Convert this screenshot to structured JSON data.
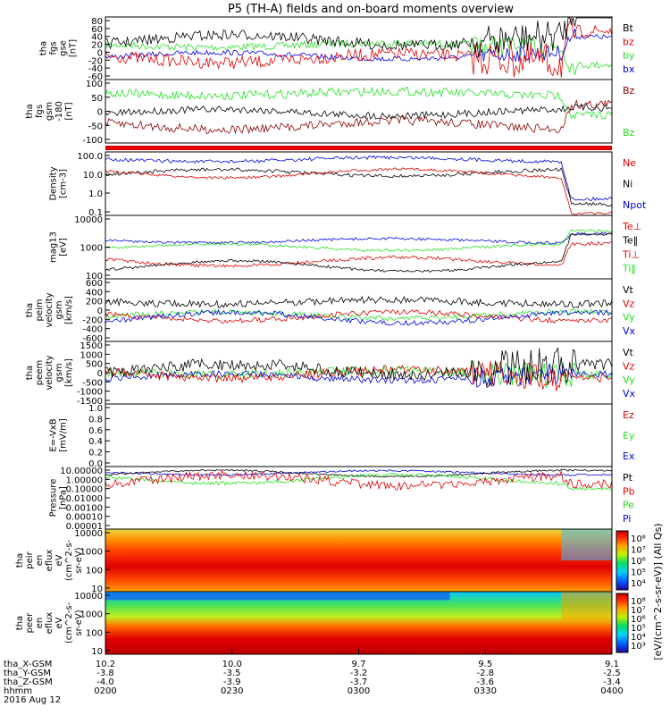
{
  "title": "P5 (TH-A) fields and on-board moments overview",
  "colors": {
    "black": "#000000",
    "red": "#e00000",
    "green": "#22e022",
    "blue": "#0000e0",
    "darkred": "#8b0000"
  },
  "panels": [
    {
      "ylabel": [
        "tha",
        "fgs",
        "gse",
        "[nT]"
      ],
      "ticks": [
        "80",
        "60",
        "40",
        "20",
        "0",
        "-20",
        "-40",
        "-60"
      ],
      "ylim": [
        -60,
        85
      ],
      "legend": [
        {
          "label": "Bt",
          "color": "black"
        },
        {
          "label": "bz",
          "color": "red"
        },
        {
          "label": "by",
          "color": "green"
        },
        {
          "label": "bx",
          "color": "blue"
        }
      ]
    },
    {
      "ylabel": [
        "tha",
        "fgs",
        "gsm",
        "-180",
        "[nT]"
      ],
      "ticks": [
        "100",
        "50",
        "0",
        "-50",
        "-100"
      ],
      "ylim": [
        -130,
        100
      ],
      "legend": [
        {
          "label": "Bz",
          "color": "darkred"
        },
        {
          "label": "Bz",
          "color": "green"
        }
      ]
    },
    {
      "ylabel": [
        "Density",
        "[cm-3]"
      ],
      "ticks": [
        "100.0",
        "10.0",
        "1.0",
        "0.1"
      ],
      "ylim": [
        0.1,
        200
      ],
      "log": true,
      "legend": [
        {
          "label": "Ne",
          "color": "red"
        },
        {
          "label": "Ni",
          "color": "black"
        },
        {
          "label": "Npot",
          "color": "blue"
        }
      ]
    },
    {
      "ylabel": [
        "mag13",
        "[eV]"
      ],
      "ticks": [
        "10000",
        "1000",
        "100"
      ],
      "ylim": [
        50,
        10000
      ],
      "log": true,
      "legend": [
        {
          "label": "Te⊥",
          "color": "red"
        },
        {
          "label": "Te‖",
          "color": "black"
        },
        {
          "label": "Ti⊥",
          "color": "red"
        },
        {
          "label": "Ti‖",
          "color": "green"
        }
      ]
    },
    {
      "ylabel": [
        "tha",
        "peim",
        "velocity",
        "gsm",
        "[km/s]"
      ],
      "ticks": [
        "600",
        "400",
        "200",
        "0",
        "-200",
        "-400",
        "-600"
      ],
      "ylim": [
        -600,
        600
      ],
      "legend": [
        {
          "label": "Vt",
          "color": "black"
        },
        {
          "label": "Vz",
          "color": "red"
        },
        {
          "label": "Vy",
          "color": "green"
        },
        {
          "label": "Vx",
          "color": "blue"
        }
      ]
    },
    {
      "ylabel": [
        "tha",
        "peem",
        "velocity",
        "gsm",
        "[km/s]"
      ],
      "ticks": [
        "1500",
        "1000",
        "500",
        "0",
        "-500",
        "-1000",
        "-1500"
      ],
      "ylim": [
        -1500,
        1500
      ],
      "legend": [
        {
          "label": "Vt",
          "color": "black"
        },
        {
          "label": "Vz",
          "color": "red"
        },
        {
          "label": "Vy",
          "color": "green"
        },
        {
          "label": "Vx",
          "color": "blue"
        }
      ]
    },
    {
      "ylabel": [
        "E=-VxB",
        "[mV/m]"
      ],
      "ticks": [
        "1.0",
        "0.8",
        "0.6",
        "0.4",
        "0.2",
        "0.0"
      ],
      "ylim": [
        0,
        1
      ],
      "legend": [
        {
          "label": "Ez",
          "color": "red"
        },
        {
          "label": "Ey",
          "color": "green"
        },
        {
          "label": "Ex",
          "color": "blue"
        }
      ]
    },
    {
      "ylabel": [
        "Pressure",
        "[nPa]"
      ],
      "ticks": [
        "10.00000",
        "1.00000",
        "0.10000",
        "0.01000",
        "0.00100",
        "0.00010",
        "0.00001"
      ],
      "ylim": [
        1e-05,
        10
      ],
      "log": true,
      "legend": [
        {
          "label": "Pt",
          "color": "black"
        },
        {
          "label": "Pb",
          "color": "red"
        },
        {
          "label": "Pe",
          "color": "green"
        },
        {
          "label": "Pi",
          "color": "blue"
        }
      ]
    },
    {
      "ylabel": [
        "tha",
        "peir",
        "en",
        "eflux",
        "eV",
        "(cm^2-s-",
        "sr-eV)"
      ],
      "ticks": [
        "10000",
        "1000",
        "100",
        "10"
      ],
      "spectrogram": true
    },
    {
      "ylabel": [
        "tha",
        "peer",
        "en",
        "eflux",
        "eV",
        "(cm^2-s-",
        "sr-eV)"
      ],
      "ticks": [
        "10000",
        "1000",
        "100",
        "10"
      ],
      "spectrogram": true
    }
  ],
  "colorbar_ticks": [
    "10⁸",
    "10⁷",
    "10⁶",
    "10⁵",
    "10⁴"
  ],
  "colorbar_ticks_2": [
    "10⁸",
    "10⁷",
    "10⁶",
    "10⁵",
    "10⁴",
    "10³"
  ],
  "colorbar_label": "[eV/(cm^2-s-sr-eV)] (All Qs)",
  "xaxis": {
    "rows": [
      {
        "label": "tha_X-GSM",
        "values": [
          "10.2",
          "10.0",
          "9.7",
          "9.5",
          "9.1"
        ]
      },
      {
        "label": "tha_Y-GSM",
        "values": [
          "-3.8",
          "-3.5",
          "-3.2",
          "-2.8",
          "-2.5"
        ]
      },
      {
        "label": "tha_Z-GSM",
        "values": [
          "-4.0",
          "-3.9",
          "-3.7",
          "-3.6",
          "-3.4"
        ]
      },
      {
        "label": "hhmm",
        "values": [
          "0200",
          "0230",
          "0300",
          "0330",
          "0400"
        ]
      }
    ],
    "date": "2016 Aug 12"
  },
  "chart_data": {
    "type": "line",
    "title": "P5 (TH-A) fields and on-board moments overview",
    "x": [
      "0200",
      "0230",
      "0300",
      "0330",
      "0400"
    ],
    "series": [
      {
        "name": "Bt",
        "values": [
          22,
          25,
          28,
          35,
          65
        ]
      },
      {
        "name": "bz",
        "values": [
          -5,
          -8,
          -10,
          -12,
          55
        ]
      },
      {
        "name": "by",
        "values": [
          10,
          12,
          15,
          18,
          -5
        ]
      },
      {
        "name": "bx",
        "values": [
          2,
          0,
          5,
          8,
          22
        ]
      },
      {
        "name": "Ne",
        "values": [
          10,
          12,
          11,
          8,
          0.3
        ]
      },
      {
        "name": "Npot",
        "values": [
          50,
          60,
          55,
          45,
          0.5
        ]
      }
    ]
  }
}
